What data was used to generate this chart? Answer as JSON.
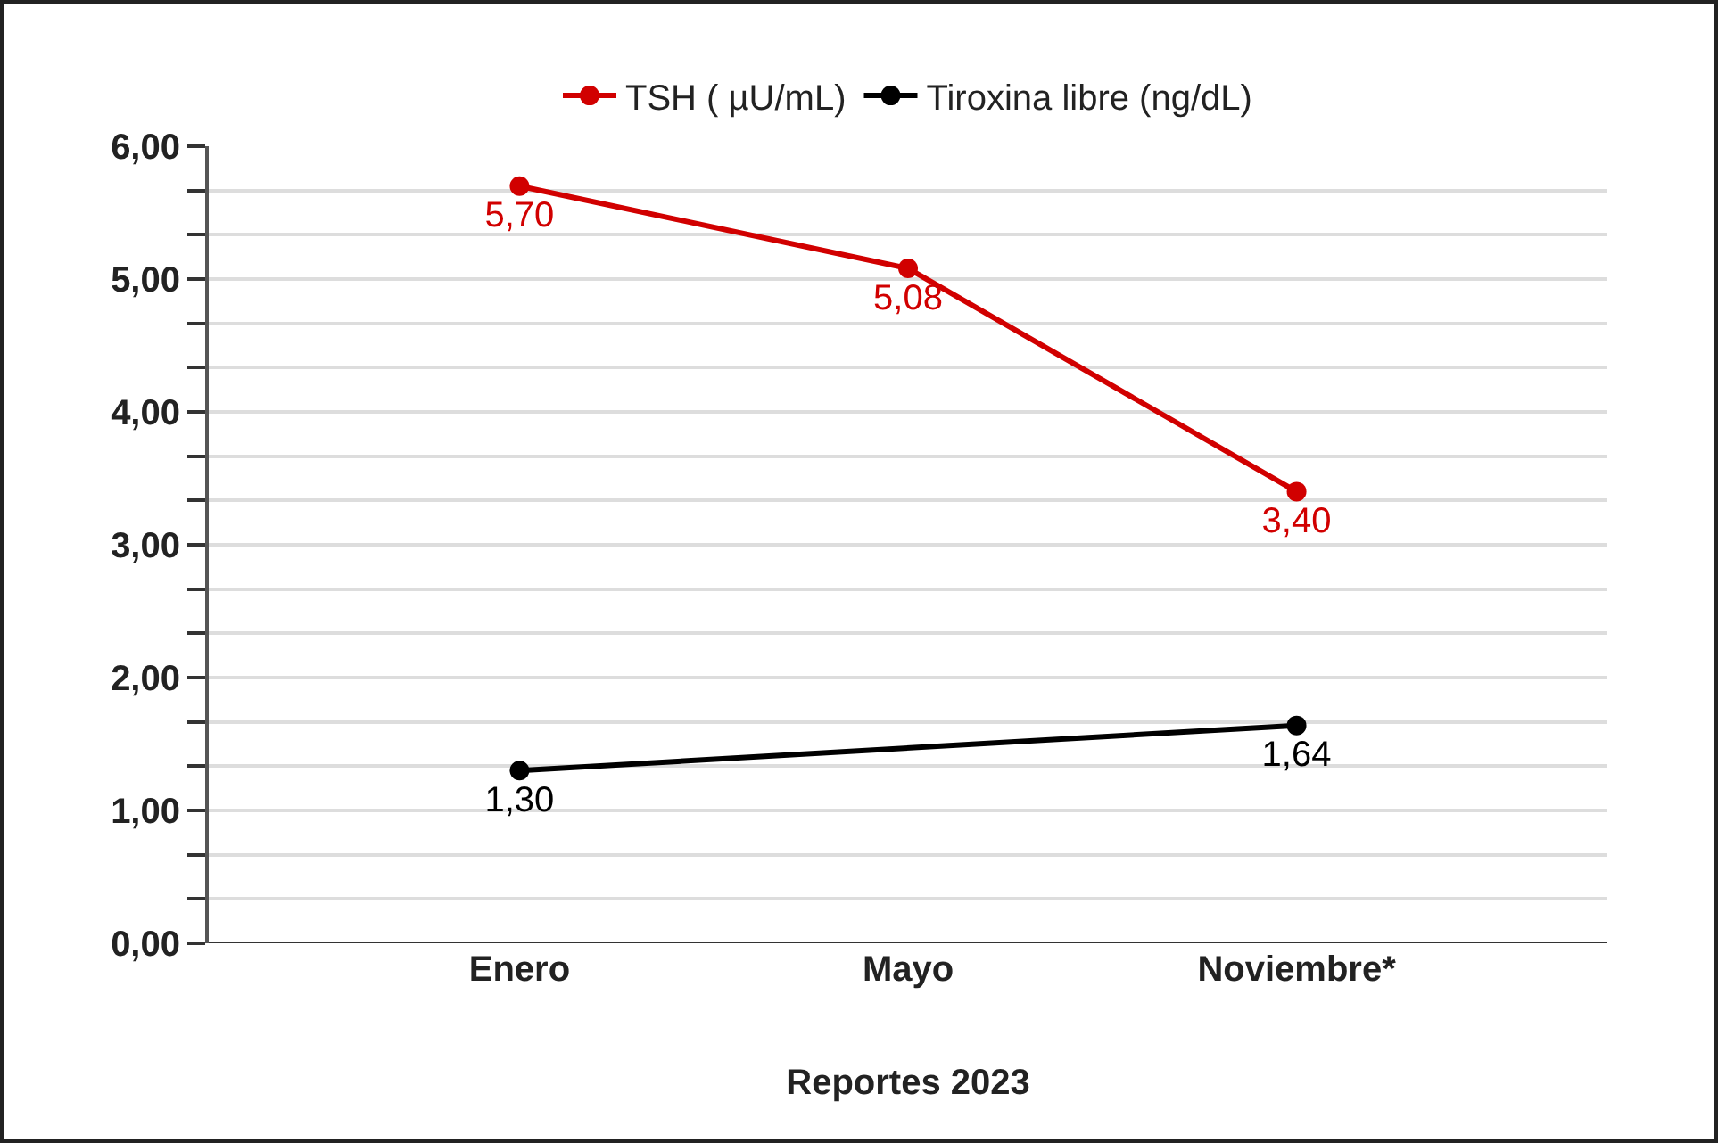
{
  "chart_data": {
    "type": "line",
    "xlabel": "Reportes 2023",
    "categories": [
      "Enero",
      "Mayo",
      "Noviembre*"
    ],
    "series": [
      {
        "name": "TSH ( µU/mL)",
        "color": "#d10000",
        "values": [
          5.7,
          5.08,
          3.4
        ],
        "value_labels": [
          "5,70",
          "5,08",
          "3,40"
        ]
      },
      {
        "name": "Tiroxina libre (ng/dL)",
        "color": "#000000",
        "x": [
          "Enero",
          "Noviembre*"
        ],
        "values": [
          1.3,
          1.64
        ],
        "value_labels": [
          "1,30",
          "1,64"
        ]
      }
    ],
    "ylim": [
      0,
      6
    ],
    "yticks": [
      {
        "value": 0,
        "label": "0,00"
      },
      {
        "value": 0.333,
        "label": null
      },
      {
        "value": 0.667,
        "label": null
      },
      {
        "value": 1,
        "label": "1,00"
      },
      {
        "value": 1.333,
        "label": null
      },
      {
        "value": 1.667,
        "label": null
      },
      {
        "value": 2,
        "label": "2,00"
      },
      {
        "value": 2.333,
        "label": null
      },
      {
        "value": 2.667,
        "label": null
      },
      {
        "value": 3,
        "label": "3,00"
      },
      {
        "value": 3.333,
        "label": null
      },
      {
        "value": 3.667,
        "label": null
      },
      {
        "value": 4,
        "label": "4,00"
      },
      {
        "value": 4.333,
        "label": null
      },
      {
        "value": 4.667,
        "label": null
      },
      {
        "value": 5,
        "label": "5,00"
      },
      {
        "value": 5.333,
        "label": null
      },
      {
        "value": 5.667,
        "label": null
      },
      {
        "value": 6,
        "label": "6,00"
      }
    ],
    "grid": "y",
    "legend": "top",
    "marker": "circle",
    "line_style": "solid"
  }
}
